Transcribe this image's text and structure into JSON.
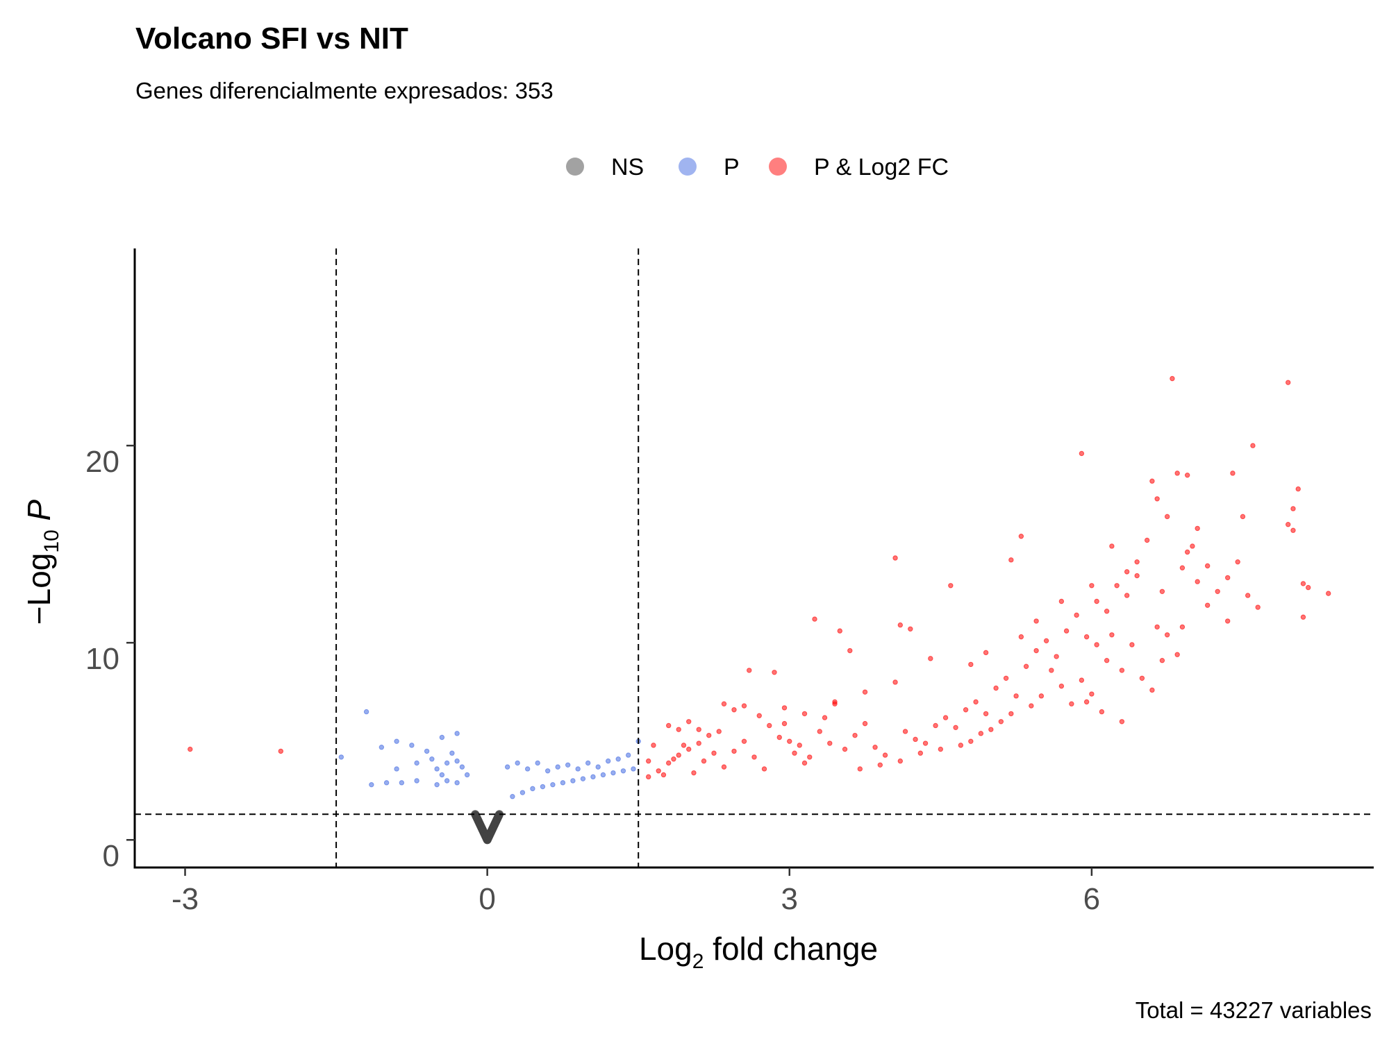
{
  "chart_data": {
    "type": "scatter",
    "title": "Volcano SFI vs NIT",
    "subtitle": "Genes diferencialmente expresados: 353",
    "caption": "Total = 43227 variables",
    "xlabel": {
      "base": "Log",
      "sub": "2",
      "rest": " fold change"
    },
    "ylabel": {
      "base": "−Log",
      "sub": "10",
      "rest": " P"
    },
    "xlim": [
      -3.5,
      8.8
    ],
    "ylim": [
      -1.4,
      30
    ],
    "x_ticks": [
      {
        "v": -3,
        "label": "-3"
      },
      {
        "v": 0,
        "label": "0"
      },
      {
        "v": 3,
        "label": "3"
      },
      {
        "v": 6,
        "label": "6"
      }
    ],
    "y_ticks": [
      {
        "v": 0,
        "label": "0"
      },
      {
        "v": 10,
        "label": "10"
      },
      {
        "v": 20,
        "label": "20"
      }
    ],
    "grid": false,
    "legend_position": "top",
    "cutoffs": {
      "x": [
        -1.5,
        1.5
      ],
      "y": 1.3
    },
    "legend": [
      {
        "label": "NS",
        "color": "#555555"
      },
      {
        "label": "P",
        "color": "#4169e1"
      },
      {
        "label": "P & Log2 FC",
        "color": "#ff0000"
      }
    ],
    "series": [
      {
        "name": "NS",
        "color": "#444444",
        "shape": "v",
        "x_range": [
          -0.12,
          0.12
        ],
        "y_range": [
          0,
          1.3
        ]
      },
      {
        "name": "P",
        "color": "#4169e1",
        "points": [
          [
            -1.2,
            6.5
          ],
          [
            -1.45,
            4.2
          ],
          [
            -1.05,
            4.7
          ],
          [
            -0.9,
            5.0
          ],
          [
            -0.75,
            4.8
          ],
          [
            -0.6,
            4.5
          ],
          [
            -0.45,
            5.2
          ],
          [
            -0.3,
            5.4
          ],
          [
            -1.15,
            2.8
          ],
          [
            -1.0,
            2.9
          ],
          [
            -0.85,
            2.9
          ],
          [
            -0.7,
            3.0
          ],
          [
            -0.9,
            3.6
          ],
          [
            -0.7,
            3.9
          ],
          [
            -0.55,
            4.1
          ],
          [
            -0.5,
            3.6
          ],
          [
            -0.45,
            3.3
          ],
          [
            -0.4,
            3.9
          ],
          [
            -0.35,
            4.4
          ],
          [
            -0.3,
            4.0
          ],
          [
            -0.25,
            3.7
          ],
          [
            -0.2,
            3.3
          ],
          [
            -0.4,
            3.0
          ],
          [
            -0.3,
            2.9
          ],
          [
            -0.5,
            2.8
          ],
          [
            0.2,
            3.7
          ],
          [
            0.3,
            3.9
          ],
          [
            0.4,
            3.6
          ],
          [
            0.5,
            3.9
          ],
          [
            0.6,
            3.5
          ],
          [
            0.7,
            3.7
          ],
          [
            0.8,
            3.8
          ],
          [
            0.9,
            3.6
          ],
          [
            1.0,
            3.9
          ],
          [
            1.1,
            3.7
          ],
          [
            1.2,
            4.0
          ],
          [
            1.3,
            4.1
          ],
          [
            1.4,
            4.3
          ],
          [
            1.5,
            5.0
          ],
          [
            1.35,
            3.5
          ],
          [
            1.25,
            3.4
          ],
          [
            1.15,
            3.3
          ],
          [
            1.05,
            3.2
          ],
          [
            0.95,
            3.1
          ],
          [
            0.85,
            3.0
          ],
          [
            0.75,
            2.9
          ],
          [
            0.65,
            2.8
          ],
          [
            0.55,
            2.7
          ],
          [
            0.45,
            2.6
          ],
          [
            0.35,
            2.4
          ],
          [
            0.25,
            2.2
          ],
          [
            1.45,
            3.6
          ]
        ]
      },
      {
        "name": "P & Log2 FC",
        "color": "#ff0000",
        "points": [
          [
            -2.95,
            4.6
          ],
          [
            -2.05,
            4.5
          ],
          [
            1.6,
            3.2
          ],
          [
            1.7,
            3.5
          ],
          [
            1.8,
            3.9
          ],
          [
            1.9,
            4.3
          ],
          [
            2.0,
            4.6
          ],
          [
            2.1,
            4.9
          ],
          [
            2.2,
            5.3
          ],
          [
            1.75,
            3.3
          ],
          [
            1.85,
            4.1
          ],
          [
            1.95,
            4.8
          ],
          [
            2.05,
            3.4
          ],
          [
            2.15,
            4.0
          ],
          [
            2.25,
            4.4
          ],
          [
            2.35,
            3.7
          ],
          [
            2.45,
            4.5
          ],
          [
            2.55,
            5.0
          ],
          [
            2.65,
            4.2
          ],
          [
            2.75,
            3.6
          ],
          [
            1.6,
            4.0
          ],
          [
            1.65,
            4.8
          ],
          [
            1.9,
            5.6
          ],
          [
            2.0,
            6.0
          ],
          [
            2.3,
            5.5
          ],
          [
            2.45,
            6.6
          ],
          [
            2.55,
            6.8
          ],
          [
            2.7,
            6.3
          ],
          [
            2.8,
            5.8
          ],
          [
            2.9,
            5.2
          ],
          [
            3.0,
            5.0
          ],
          [
            3.1,
            4.8
          ],
          [
            3.2,
            4.2
          ],
          [
            3.3,
            5.5
          ],
          [
            3.4,
            4.9
          ],
          [
            2.6,
            8.6
          ],
          [
            2.85,
            8.5
          ],
          [
            2.95,
            5.9
          ],
          [
            3.05,
            4.4
          ],
          [
            3.15,
            3.9
          ],
          [
            3.35,
            6.2
          ],
          [
            3.45,
            7.0
          ],
          [
            3.55,
            4.6
          ],
          [
            3.65,
            5.3
          ],
          [
            3.75,
            5.9
          ],
          [
            3.85,
            4.7
          ],
          [
            3.95,
            4.3
          ],
          [
            3.5,
            10.6
          ],
          [
            3.6,
            9.6
          ],
          [
            3.25,
            11.2
          ],
          [
            4.05,
            14.3
          ],
          [
            4.1,
            10.9
          ],
          [
            4.2,
            10.7
          ],
          [
            4.15,
            5.5
          ],
          [
            4.25,
            5.1
          ],
          [
            4.35,
            4.9
          ],
          [
            4.45,
            5.8
          ],
          [
            4.55,
            6.2
          ],
          [
            4.65,
            5.7
          ],
          [
            4.75,
            6.6
          ],
          [
            4.85,
            7.0
          ],
          [
            4.95,
            6.4
          ],
          [
            5.05,
            7.7
          ],
          [
            5.15,
            8.2
          ],
          [
            5.25,
            7.3
          ],
          [
            5.35,
            8.8
          ],
          [
            5.45,
            9.6
          ],
          [
            5.55,
            10.1
          ],
          [
            5.65,
            9.3
          ],
          [
            5.75,
            10.6
          ],
          [
            5.85,
            11.4
          ],
          [
            5.95,
            10.3
          ],
          [
            6.05,
            12.1
          ],
          [
            6.15,
            11.6
          ],
          [
            6.25,
            12.9
          ],
          [
            6.35,
            13.6
          ],
          [
            6.45,
            14.1
          ],
          [
            6.55,
            15.2
          ],
          [
            6.65,
            17.3
          ],
          [
            6.75,
            16.4
          ],
          [
            6.85,
            18.6
          ],
          [
            6.95,
            14.6
          ],
          [
            7.05,
            13.1
          ],
          [
            7.15,
            11.9
          ],
          [
            7.25,
            12.6
          ],
          [
            7.35,
            13.3
          ],
          [
            7.45,
            14.1
          ],
          [
            7.55,
            12.4
          ],
          [
            7.65,
            11.8
          ],
          [
            4.6,
            12.9
          ],
          [
            5.2,
            14.2
          ],
          [
            5.3,
            15.4
          ],
          [
            5.9,
            19.6
          ],
          [
            6.2,
            14.9
          ],
          [
            6.35,
            12.4
          ],
          [
            6.6,
            18.2
          ],
          [
            6.8,
            23.4
          ],
          [
            6.95,
            18.5
          ],
          [
            7.4,
            18.6
          ],
          [
            7.5,
            16.4
          ],
          [
            7.6,
            20.0
          ],
          [
            7.95,
            23.2
          ],
          [
            8.05,
            17.8
          ],
          [
            8.0,
            16.8
          ],
          [
            7.95,
            16.0
          ],
          [
            8.0,
            15.7
          ],
          [
            8.1,
            13.0
          ],
          [
            8.15,
            12.8
          ],
          [
            8.1,
            11.3
          ],
          [
            8.35,
            12.5
          ],
          [
            7.05,
            15.8
          ],
          [
            7.15,
            13.9
          ],
          [
            7.0,
            14.9
          ],
          [
            6.7,
            12.6
          ],
          [
            6.75,
            10.4
          ],
          [
            6.85,
            9.4
          ],
          [
            6.9,
            10.8
          ],
          [
            6.7,
            9.1
          ],
          [
            6.5,
            8.2
          ],
          [
            6.6,
            7.6
          ],
          [
            6.3,
            8.6
          ],
          [
            6.4,
            9.9
          ],
          [
            6.2,
            10.4
          ],
          [
            6.05,
            9.9
          ],
          [
            5.9,
            8.1
          ],
          [
            6.0,
            7.4
          ],
          [
            5.7,
            7.8
          ],
          [
            5.6,
            8.6
          ],
          [
            5.5,
            7.3
          ],
          [
            5.4,
            6.8
          ],
          [
            5.2,
            6.4
          ],
          [
            5.1,
            6.0
          ],
          [
            5.0,
            5.6
          ],
          [
            4.9,
            5.4
          ],
          [
            4.8,
            5.0
          ],
          [
            4.7,
            4.8
          ],
          [
            4.5,
            4.6
          ],
          [
            4.3,
            4.4
          ],
          [
            4.1,
            4.0
          ],
          [
            3.9,
            3.8
          ],
          [
            3.7,
            3.6
          ],
          [
            5.8,
            6.9
          ],
          [
            6.1,
            6.5
          ],
          [
            6.3,
            6.0
          ],
          [
            5.95,
            7.0
          ],
          [
            4.95,
            9.5
          ],
          [
            5.3,
            10.3
          ],
          [
            5.7,
            12.1
          ],
          [
            6.0,
            12.9
          ],
          [
            6.45,
            13.4
          ],
          [
            6.9,
            13.8
          ],
          [
            7.35,
            11.1
          ],
          [
            6.65,
            10.8
          ],
          [
            6.15,
            9.1
          ],
          [
            5.45,
            11.1
          ],
          [
            4.8,
            8.9
          ],
          [
            4.4,
            9.2
          ],
          [
            4.05,
            8.0
          ],
          [
            3.75,
            7.5
          ],
          [
            3.45,
            6.9
          ],
          [
            3.15,
            6.4
          ],
          [
            2.95,
            6.7
          ],
          [
            2.35,
            6.9
          ],
          [
            2.1,
            5.6
          ],
          [
            1.8,
            5.8
          ]
        ]
      }
    ]
  }
}
